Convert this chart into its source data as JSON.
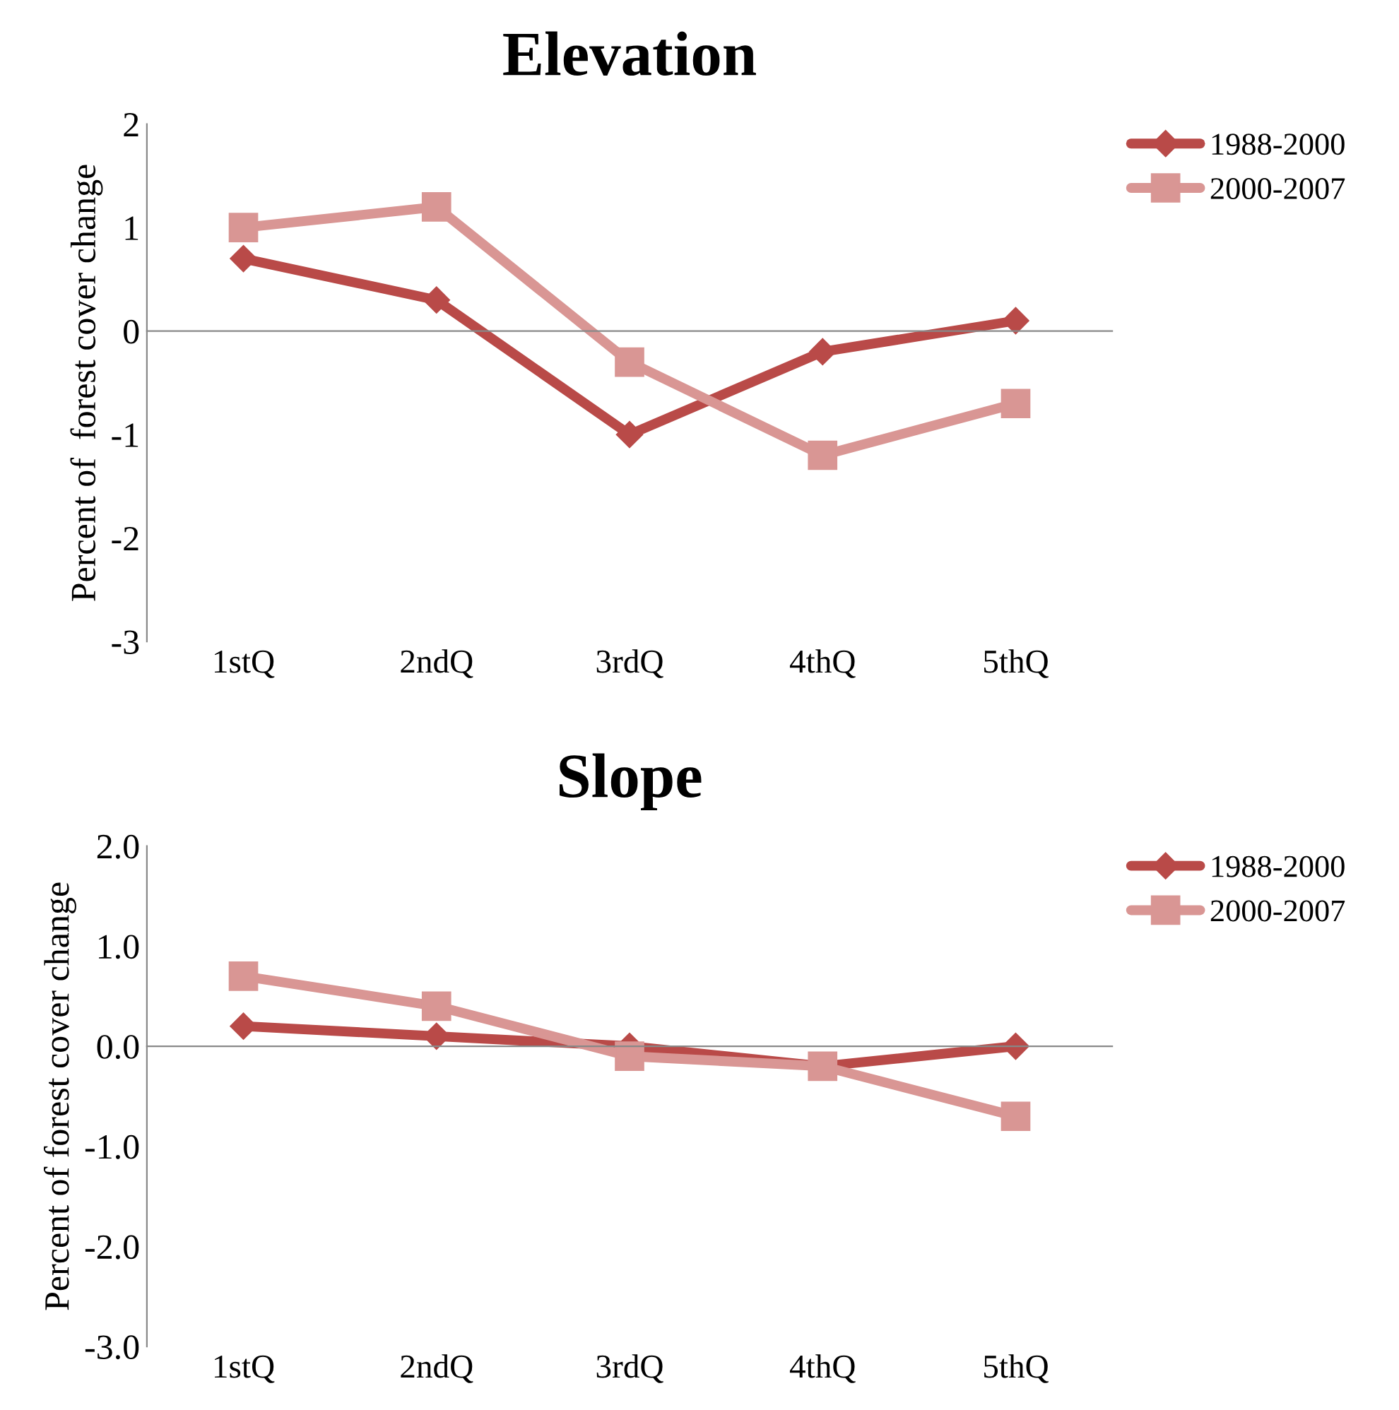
{
  "chart_data": [
    {
      "type": "line",
      "title": "Elevation",
      "ylabel": "Percent of  forest cover change",
      "categories": [
        "1stQ",
        "2ndQ",
        "3rdQ",
        "4thQ",
        "5thQ"
      ],
      "ylim": [
        -3,
        2
      ],
      "yticks": [
        -3,
        -2,
        -1,
        0,
        1,
        2
      ],
      "legend": "right",
      "line_style": "solid",
      "series": [
        {
          "name": "1988-2000",
          "color": "#b94a48",
          "marker": "diamond",
          "values": [
            0.7,
            0.3,
            -1.0,
            -0.2,
            0.1
          ]
        },
        {
          "name": "2000-2007",
          "color": "#d99694",
          "marker": "square",
          "values": [
            1.0,
            1.2,
            -0.3,
            -1.2,
            -0.7
          ]
        }
      ]
    },
    {
      "type": "line",
      "title": "Slope",
      "ylabel": "Percent of forest cover change",
      "categories": [
        "1stQ",
        "2ndQ",
        "3rdQ",
        "4thQ",
        "5thQ"
      ],
      "ylim": [
        -3,
        2
      ],
      "yticks": [
        {
          "value": -3,
          "label": "-3.0"
        },
        {
          "value": -2,
          "label": "-2.0"
        },
        {
          "value": -1,
          "label": "-1.0"
        },
        {
          "value": 0,
          "label": "0.0"
        },
        {
          "value": 1,
          "label": "1.0"
        },
        {
          "value": 2,
          "label": "2.0"
        }
      ],
      "legend": "right",
      "line_style": "solid",
      "series": [
        {
          "name": "1988-2000",
          "color": "#b94a48",
          "marker": "diamond",
          "values": [
            0.2,
            0.1,
            0.0,
            -0.2,
            0.0
          ]
        },
        {
          "name": "2000-2007",
          "color": "#d99694",
          "marker": "square",
          "values": [
            0.7,
            0.4,
            -0.1,
            -0.2,
            -0.7
          ]
        }
      ]
    }
  ]
}
